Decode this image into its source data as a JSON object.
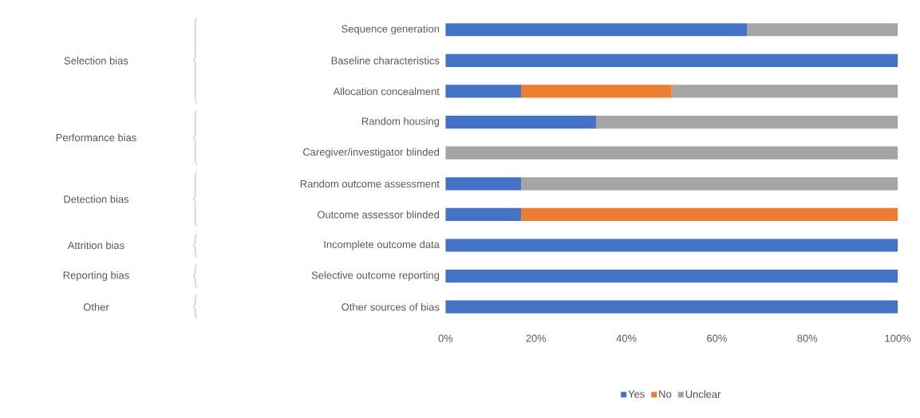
{
  "chart_data": {
    "type": "bar",
    "orientation": "horizontal",
    "stacked": true,
    "categories": [
      "Sequence generation",
      "Baseline characteristics",
      "Allocation concealment",
      "Random housing",
      "Caregiver/investigator blinded",
      "Random outcome assessment",
      "Outcome assessor blinded",
      "Incomplete outcome data",
      "Selective outcome reporting",
      "Other sources of bias"
    ],
    "series": [
      {
        "name": "Yes",
        "color": "#4472c4",
        "values": [
          66.7,
          100,
          16.7,
          33.3,
          0,
          16.7,
          16.7,
          100,
          100,
          100
        ]
      },
      {
        "name": "No",
        "color": "#ed7d31",
        "values": [
          0,
          0,
          33.3,
          0,
          0,
          0,
          83.3,
          0,
          0,
          0
        ]
      },
      {
        "name": "Unclear",
        "color": "#a5a5a5",
        "values": [
          33.3,
          0,
          50,
          66.7,
          100,
          83.3,
          0,
          0,
          0,
          0
        ]
      }
    ],
    "xlim": [
      0,
      100
    ],
    "xticks": [
      {
        "value": 0,
        "label": "0%"
      },
      {
        "value": 20,
        "label": "20%"
      },
      {
        "value": 40,
        "label": "40%"
      },
      {
        "value": 60,
        "label": "60%"
      },
      {
        "value": 80,
        "label": "80%"
      },
      {
        "value": 100,
        "label": "100%"
      }
    ],
    "legend": "bottom",
    "grid": false,
    "annotations": [
      "Selection bias",
      "Performance bias",
      "Detection bias",
      "Attrition bias",
      "Reporting bias",
      "Other"
    ]
  }
}
